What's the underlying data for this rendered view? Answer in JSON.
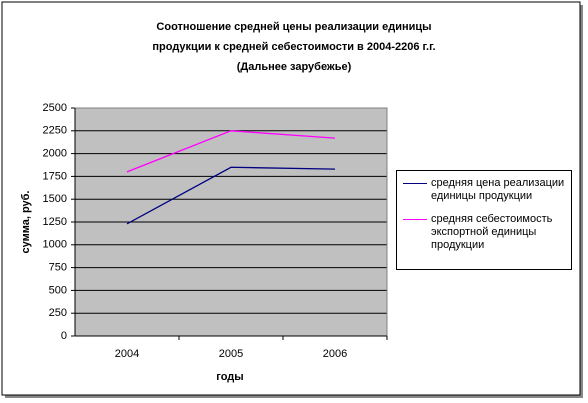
{
  "chart_data": {
    "type": "line",
    "title": [
      "Соотношение средней цены реализации единицы",
      "продукции к средней себестоимости в 2004-2206 г.г.",
      "(Дальнее зарубежье)"
    ],
    "x_label": "годы",
    "y_label": "сумма, руб.",
    "categories": [
      "2004",
      "2005",
      "2006"
    ],
    "series": [
      {
        "name": "средняя цена реализации единицы продукции",
        "color": "#000080",
        "values": [
          1230,
          1850,
          1830
        ]
      },
      {
        "name": "средняя себестоимость экспортной единицы продукции",
        "color": "#ff00ff",
        "values": [
          1800,
          2250,
          2170
        ]
      }
    ],
    "ylim": [
      0,
      2500
    ],
    "yticks": [
      0,
      250,
      500,
      750,
      1000,
      1250,
      1500,
      1750,
      2000,
      2250,
      2500
    ],
    "grid": true,
    "legend": "right"
  }
}
